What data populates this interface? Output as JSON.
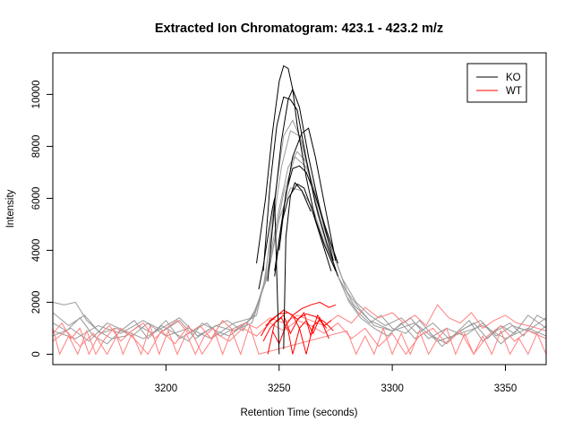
{
  "chart_data": {
    "type": "line",
    "title": "Extracted Ion Chromatogram: 423.1 - 423.2 m/z",
    "xlabel": "Retention Time (seconds)",
    "ylabel": "Intensity",
    "xlim": [
      3150,
      3368
    ],
    "ylim": [
      -400,
      11600
    ],
    "x_ticks": [
      3200,
      3250,
      3300,
      3350
    ],
    "y_ticks": [
      0,
      2000,
      4000,
      6000,
      8000,
      10000
    ],
    "grid": false,
    "legend": {
      "position": "top-right",
      "entries": [
        {
          "label": "KO",
          "color": "#000000"
        },
        {
          "label": "WT",
          "color": "#ff0000"
        }
      ]
    },
    "series": [
      {
        "group": "KO",
        "color": "#000000",
        "x": [
          3240,
          3244,
          3247,
          3250,
          3252,
          3254,
          3256,
          3258,
          3262,
          3266,
          3270,
          3275
        ],
        "y": [
          3500,
          6000,
          8500,
          10500,
          11100,
          11000,
          10200,
          8800,
          6800,
          5200,
          4200,
          3200
        ]
      },
      {
        "group": "KO",
        "color": "#000000",
        "x": [
          3243,
          3246,
          3249,
          3252,
          3255,
          3258,
          3262,
          3266,
          3271,
          3276
        ],
        "y": [
          3200,
          6500,
          8800,
          9900,
          9800,
          9400,
          7500,
          5800,
          4300,
          3000
        ]
      },
      {
        "group": "KO",
        "color": "#000000",
        "x": [
          3245,
          3248,
          3251,
          3254,
          3256,
          3259,
          3263,
          3268,
          3274
        ],
        "y": [
          2800,
          5800,
          8200,
          9800,
          10200,
          9500,
          7600,
          5600,
          3600
        ]
      },
      {
        "group": "KO",
        "color": "#000000",
        "x": [
          3248,
          3252,
          3256,
          3260,
          3263,
          3266,
          3270,
          3275
        ],
        "y": [
          3200,
          5600,
          7600,
          8500,
          8700,
          7600,
          5800,
          3600
        ]
      },
      {
        "group": "KO",
        "color": "#000000",
        "x": [
          3250,
          3253,
          3256,
          3259,
          3262,
          3266,
          3270,
          3276
        ],
        "y": [
          4000,
          6200,
          7150,
          7250,
          7000,
          6100,
          5000,
          3500
        ]
      },
      {
        "group": "KO",
        "color": "#000000",
        "x": [
          3248,
          3251,
          3254,
          3258,
          3261,
          3264,
          3268,
          3273
        ],
        "y": [
          3000,
          5000,
          6000,
          6550,
          6400,
          5700,
          4600,
          3200
        ]
      },
      {
        "group": "KO",
        "color": "#000000",
        "x": [
          3241,
          3243,
          3245,
          3247,
          3248,
          3249,
          3250
        ],
        "y": [
          2500,
          3400,
          4500,
          5600,
          6000,
          3000,
          0
        ]
      },
      {
        "group": "KO",
        "color": "#000000",
        "x": [
          3252,
          3253,
          3255,
          3257,
          3260,
          3264
        ],
        "y": [
          200,
          4500,
          6100,
          6600,
          6300,
          5500
        ]
      },
      {
        "group": "KO",
        "color": "#999999",
        "x": [
          3150,
          3155,
          3160,
          3165,
          3170,
          3176,
          3182,
          3188,
          3194,
          3200,
          3206,
          3212,
          3218,
          3224,
          3230,
          3235,
          3240,
          3244,
          3248,
          3252,
          3256,
          3260,
          3264,
          3268,
          3272,
          3276,
          3280,
          3285,
          3290,
          3295,
          3300,
          3306,
          3312,
          3318,
          3324,
          3330,
          3336,
          3342,
          3348,
          3354,
          3360,
          3368
        ],
        "y": [
          2000,
          1900,
          2000,
          1300,
          900,
          600,
          700,
          1100,
          800,
          1300,
          600,
          900,
          1200,
          700,
          1000,
          1200,
          1500,
          3000,
          6000,
          8400,
          9000,
          8200,
          6800,
          5200,
          4000,
          3000,
          2200,
          1600,
          1200,
          1500,
          1000,
          800,
          1300,
          700,
          400,
          900,
          1200,
          600,
          1100,
          800,
          1500,
          1000
        ]
      },
      {
        "group": "KO",
        "color": "#999999",
        "x": [
          3150,
          3156,
          3162,
          3168,
          3174,
          3180,
          3186,
          3192,
          3198,
          3204,
          3210,
          3216,
          3222,
          3228,
          3234,
          3239,
          3243,
          3247,
          3251,
          3255,
          3259,
          3263,
          3267,
          3271,
          3276,
          3281,
          3286,
          3292,
          3298,
          3304,
          3310,
          3316,
          3322,
          3328,
          3334,
          3340,
          3346,
          3352,
          3358,
          3364,
          3368
        ],
        "y": [
          1200,
          900,
          1400,
          700,
          400,
          900,
          1300,
          600,
          1100,
          800,
          500,
          1200,
          900,
          700,
          1100,
          1500,
          2600,
          4800,
          7200,
          8600,
          8400,
          7000,
          5400,
          4200,
          3000,
          2000,
          1400,
          1000,
          700,
          1200,
          600,
          900,
          300,
          800,
          1300,
          500,
          900,
          1200,
          700,
          1500,
          1300
        ]
      },
      {
        "group": "KO",
        "color": "#999999",
        "x": [
          3150,
          3158,
          3166,
          3174,
          3182,
          3190,
          3198,
          3206,
          3214,
          3222,
          3230,
          3238,
          3244,
          3250,
          3254,
          3258,
          3262,
          3266,
          3270,
          3275,
          3280,
          3286,
          3292,
          3300,
          3308,
          3316,
          3324,
          3332,
          3340,
          3348,
          3356,
          3364,
          3368
        ],
        "y": [
          700,
          1000,
          500,
          1200,
          900,
          600,
          1000,
          1400,
          700,
          1100,
          900,
          1200,
          2800,
          5600,
          7200,
          7800,
          7400,
          6200,
          4800,
          3600,
          2400,
          1700,
          1100,
          900,
          1400,
          600,
          1000,
          700,
          1200,
          400,
          1000,
          800,
          1100
        ]
      },
      {
        "group": "KO",
        "color": "#999999",
        "x": [
          3150,
          3157,
          3164,
          3171,
          3178,
          3185,
          3192,
          3199,
          3206,
          3213,
          3220,
          3227,
          3234,
          3240,
          3246,
          3252,
          3257,
          3262,
          3267,
          3272,
          3278,
          3284,
          3290,
          3297,
          3304,
          3311,
          3318,
          3325,
          3332,
          3339,
          3346,
          3353,
          3360,
          3368
        ],
        "y": [
          1600,
          1100,
          1500,
          800,
          1000,
          700,
          1200,
          900,
          1300,
          600,
          1000,
          1300,
          900,
          1800,
          3500,
          6200,
          7600,
          7200,
          6000,
          4400,
          2900,
          2000,
          1500,
          1100,
          1400,
          800,
          1200,
          600,
          1000,
          1300,
          700,
          1100,
          900,
          1400
        ]
      },
      {
        "group": "KO",
        "color": "#999999",
        "x": [
          3150,
          3160,
          3170,
          3180,
          3190,
          3200,
          3210,
          3220,
          3230,
          3238,
          3245,
          3250,
          3255,
          3260,
          3265,
          3270,
          3276,
          3283,
          3290,
          3300,
          3310,
          3320,
          3330,
          3340,
          3350,
          3360,
          3368
        ],
        "y": [
          900,
          600,
          1100,
          800,
          1300,
          700,
          1000,
          600,
          1200,
          1400,
          3000,
          5200,
          6400,
          6300,
          5600,
          4300,
          3000,
          1900,
          1300,
          900,
          1200,
          500,
          800,
          1100,
          600,
          1000,
          700
        ]
      },
      {
        "group": "WT",
        "color": "#ff0000",
        "x": [
          3242,
          3246,
          3250,
          3254,
          3258,
          3262,
          3266,
          3270,
          3274
        ],
        "y": [
          700,
          1300,
          1550,
          1600,
          1350,
          1550,
          1450,
          1250,
          900
        ]
      },
      {
        "group": "WT",
        "color": "#ff0000",
        "x": [
          3244,
          3248,
          3252,
          3256,
          3260,
          3264,
          3268,
          3272,
          3275
        ],
        "y": [
          1100,
          1400,
          1700,
          1500,
          1750,
          1900,
          2000,
          1800,
          1900
        ]
      },
      {
        "group": "WT",
        "color": "#ff0000",
        "x": [
          3243,
          3246,
          3249,
          3252,
          3255,
          3258,
          3261,
          3264,
          3267,
          3270,
          3273
        ],
        "y": [
          500,
          1000,
          1300,
          1500,
          800,
          1300,
          1600,
          700,
          1500,
          1100,
          1300
        ]
      },
      {
        "group": "WT",
        "color": "#ff0000",
        "x": [
          3245,
          3248,
          3251,
          3254,
          3256,
          3259,
          3262,
          3265,
          3268,
          3272
        ],
        "y": [
          0,
          1200,
          1400,
          900,
          0,
          1000,
          1300,
          800,
          1400,
          600
        ]
      },
      {
        "group": "WT",
        "color": "#ff0000",
        "x": [
          3247,
          3250,
          3253,
          3256,
          3259,
          3262,
          3265,
          3268,
          3271
        ],
        "y": [
          900,
          400,
          1100,
          1500,
          1000,
          0,
          1100,
          1300,
          1000
        ]
      },
      {
        "group": "WT",
        "color": "#ff8080",
        "x": [
          3150,
          3154,
          3158,
          3162,
          3166,
          3170,
          3175,
          3180,
          3185,
          3190,
          3195,
          3200,
          3205,
          3210,
          3215,
          3220,
          3225,
          3230,
          3235,
          3240,
          3246,
          3252,
          3258,
          3264,
          3270,
          3276,
          3282,
          3288,
          3294,
          3300,
          3305,
          3310,
          3315,
          3320,
          3325,
          3330,
          3335,
          3340,
          3345,
          3350,
          3355,
          3360,
          3368
        ],
        "y": [
          800,
          1200,
          600,
          1000,
          0,
          700,
          1100,
          500,
          900,
          1200,
          600,
          1000,
          1300,
          800,
          1100,
          600,
          1300,
          900,
          1200,
          1000,
          1400,
          1200,
          1500,
          1300,
          1100,
          1500,
          1200,
          1800,
          1400,
          1600,
          1200,
          1500,
          1100,
          1900,
          1400,
          1200,
          1600,
          1000,
          1300,
          1500,
          1200,
          1100,
          900
        ]
      },
      {
        "group": "WT",
        "color": "#ff8080",
        "x": [
          3150,
          3156,
          3162,
          3168,
          3174,
          3180,
          3186,
          3192,
          3198,
          3204,
          3210,
          3216,
          3222,
          3228,
          3234,
          3240,
          3246,
          3252,
          3258,
          3264,
          3270,
          3276,
          3282,
          3288,
          3294,
          3300,
          3306,
          3312,
          3318,
          3324,
          3330,
          3336,
          3342,
          3348,
          3354,
          3360,
          3368
        ],
        "y": [
          500,
          900,
          300,
          800,
          0,
          1000,
          600,
          0,
          900,
          400,
          1100,
          0,
          800,
          500,
          1000,
          700,
          1200,
          900,
          1300,
          1100,
          800,
          1200,
          600,
          1000,
          300,
          800,
          0,
          700,
          1000,
          400,
          900,
          0,
          700,
          1100,
          500,
          900,
          600
        ]
      },
      {
        "group": "WT",
        "color": "#ff8080",
        "x": [
          3150,
          3153,
          3157,
          3161,
          3165,
          3169,
          3173,
          3177,
          3181,
          3185,
          3189,
          3193,
          3197,
          3201,
          3205,
          3209,
          3213,
          3217,
          3221,
          3225,
          3229,
          3233,
          3237,
          3241,
          3280,
          3284,
          3288,
          3292,
          3296,
          3300,
          3304,
          3308,
          3312,
          3316,
          3320,
          3324,
          3328,
          3332,
          3336,
          3340,
          3344,
          3348,
          3352,
          3356,
          3360,
          3364,
          3368
        ],
        "y": [
          1000,
          0,
          700,
          0,
          900,
          0,
          600,
          1000,
          0,
          800,
          0,
          1100,
          0,
          900,
          0,
          800,
          0,
          700,
          1000,
          0,
          900,
          0,
          1100,
          0,
          900,
          0,
          700,
          0,
          1000,
          0,
          800,
          0,
          900,
          0,
          600,
          1000,
          0,
          800,
          0,
          700,
          0,
          900,
          0,
          600,
          0,
          800,
          0
        ]
      }
    ]
  }
}
